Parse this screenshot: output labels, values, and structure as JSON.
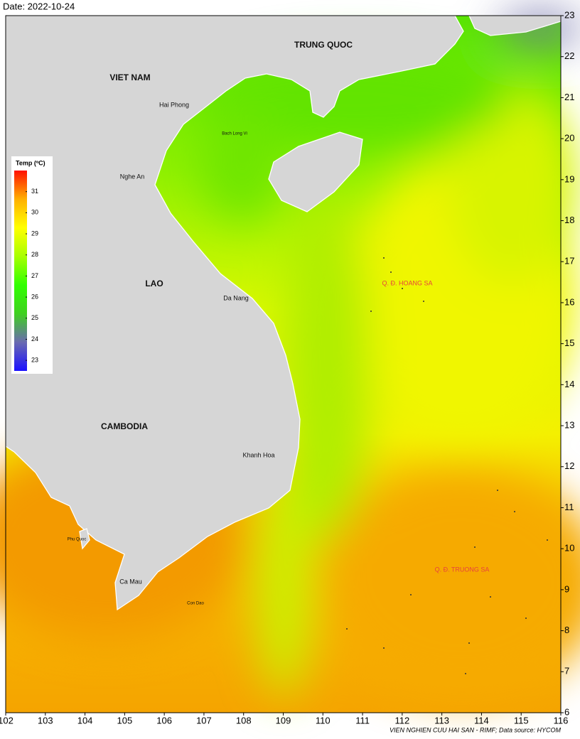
{
  "header": {
    "date": "Date: 2022-10-24"
  },
  "map": {
    "xlim": [
      102,
      116
    ],
    "ylim": [
      6,
      23
    ],
    "xticks": [
      102,
      103,
      104,
      105,
      106,
      107,
      108,
      109,
      110,
      111,
      112,
      113,
      114,
      115,
      116
    ],
    "yticks": [
      6,
      7,
      8,
      9,
      10,
      11,
      12,
      13,
      14,
      15,
      16,
      17,
      18,
      19,
      20,
      21,
      22,
      23
    ],
    "countries": [
      "TRUNG QUOC",
      "VIET NAM",
      "LAO",
      "CAMBODIA"
    ],
    "places": [
      "Hai Phong",
      "Bach Long Vi",
      "Nghe An",
      "Da Nang",
      "Khanh Hoa",
      "Phu Quoc",
      "Ca Mau",
      "Con Dao"
    ],
    "islands": [
      "Q. Đ. HOANG SA",
      "Q. Đ. TRUONG SA"
    ]
  },
  "colorbar": {
    "title": "Temp (ºC)",
    "clim": [
      22.5,
      32
    ],
    "ticks": [
      23,
      24,
      25,
      26,
      27,
      28,
      29,
      30,
      31
    ],
    "colors": [
      "#1a10ff",
      "#6a6ab0",
      "#3fd020",
      "#30ff00",
      "#a8ff00",
      "#ffff00",
      "#ffb000",
      "#ff1000"
    ]
  },
  "footer": {
    "credit": "VIEN NGHIEN CUU HAI SAN - RIMF; Data source: HYCOM"
  }
}
